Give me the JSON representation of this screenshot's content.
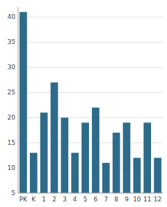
{
  "chart_data": {
    "type": "bar",
    "categories": [
      "PK",
      "K",
      "1",
      "2",
      "3",
      "4",
      "5",
      "6",
      "7",
      "8",
      "9",
      "10",
      "11",
      "12"
    ],
    "values": [
      41,
      13,
      21,
      27,
      20,
      13,
      19,
      22,
      11,
      17,
      19,
      12,
      19,
      12
    ],
    "color": "#2e6b8a",
    "ylim": [
      5,
      42
    ],
    "yticks": [
      5,
      10,
      15,
      20,
      25,
      30,
      35,
      40
    ],
    "grid": true
  }
}
